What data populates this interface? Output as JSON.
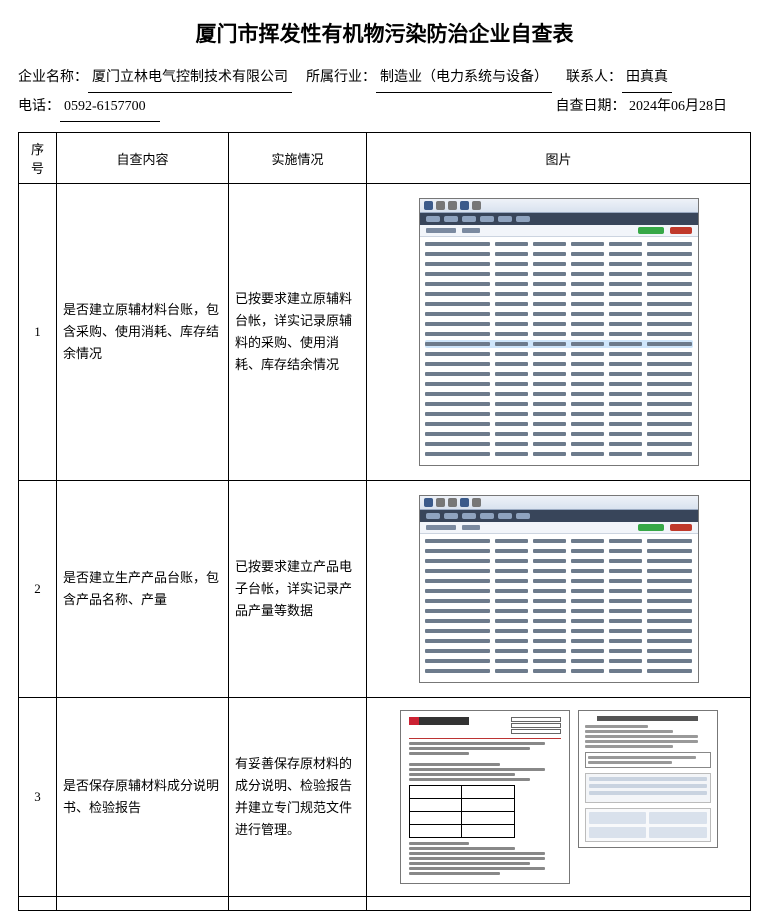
{
  "title": "厦门市挥发性有机物污染防治企业自查表",
  "meta": {
    "company_label": "企业名称：",
    "company": "厦门立林电气控制技术有限公司",
    "industry_label": "所属行业：",
    "industry": "制造业（电力系统与设备）",
    "contact_label": "联系人：",
    "contact": "田真真",
    "phone_label": "电话：",
    "phone": "0592-6157700",
    "date_label": "自查日期：",
    "date": "2024年06月28日"
  },
  "headers": {
    "idx": "序号",
    "content": "自查内容",
    "status": "实施情况",
    "image": "图片"
  },
  "rows": [
    {
      "idx": "1",
      "content": "是否建立原辅材料台账，包含采购、使用消耗、库存结余情况",
      "status": "已按要求建立原辅料台帐，详实记录原辅料的采购、使用消耗、库存结余情况",
      "image_kind": "app_tall"
    },
    {
      "idx": "2",
      "content": "是否建立生产产品台账，包含产品名称、产量",
      "status": "已按要求建立产品电子台帐，详实记录产品产量等数据",
      "image_kind": "app_short"
    },
    {
      "idx": "3",
      "content": "是否保存原辅材料成分说明书、检验报告",
      "status": "有妥善保存原材料的成分说明、检验报告并建立专门规范文件进行管理。",
      "image_kind": "doc_pair"
    }
  ],
  "thumb": {
    "rows_tall": 22,
    "rows_short": 14,
    "highlight_row": 10
  }
}
